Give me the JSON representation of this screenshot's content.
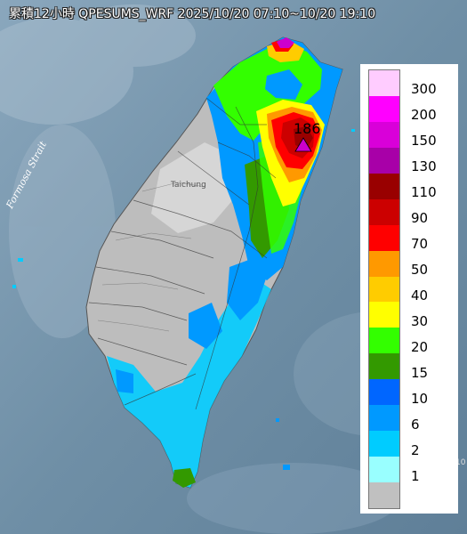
{
  "title": "累積12小時 QPESUMS_WRF 2025/10/20 07:10~10/20 19:10",
  "legend": [
    {
      "label": "300",
      "color": "#ffccff"
    },
    {
      "label": "200",
      "color": "#ff00ff"
    },
    {
      "label": "150",
      "color": "#d900d9"
    },
    {
      "label": "130",
      "color": "#a800a8"
    },
    {
      "label": "110",
      "color": "#990000"
    },
    {
      "label": "90",
      "color": "#cc0000"
    },
    {
      "label": "70",
      "color": "#ff0000"
    },
    {
      "label": "50",
      "color": "#ff9900"
    },
    {
      "label": "40",
      "color": "#ffcc00"
    },
    {
      "label": "30",
      "color": "#ffff00"
    },
    {
      "label": "20",
      "color": "#33ff00"
    },
    {
      "label": "15",
      "color": "#339900"
    },
    {
      "label": "10",
      "color": "#0066ff"
    },
    {
      "label": "6",
      "color": "#0099ff"
    },
    {
      "label": "2",
      "color": "#00ccff"
    },
    {
      "label": "1",
      "color": "#99ffff"
    },
    {
      "label": "",
      "color": "#c0c0c0"
    }
  ],
  "max_value": "186",
  "strait_label": "Formosa Strait",
  "city_label": "Taichung",
  "edge_label": "10"
}
